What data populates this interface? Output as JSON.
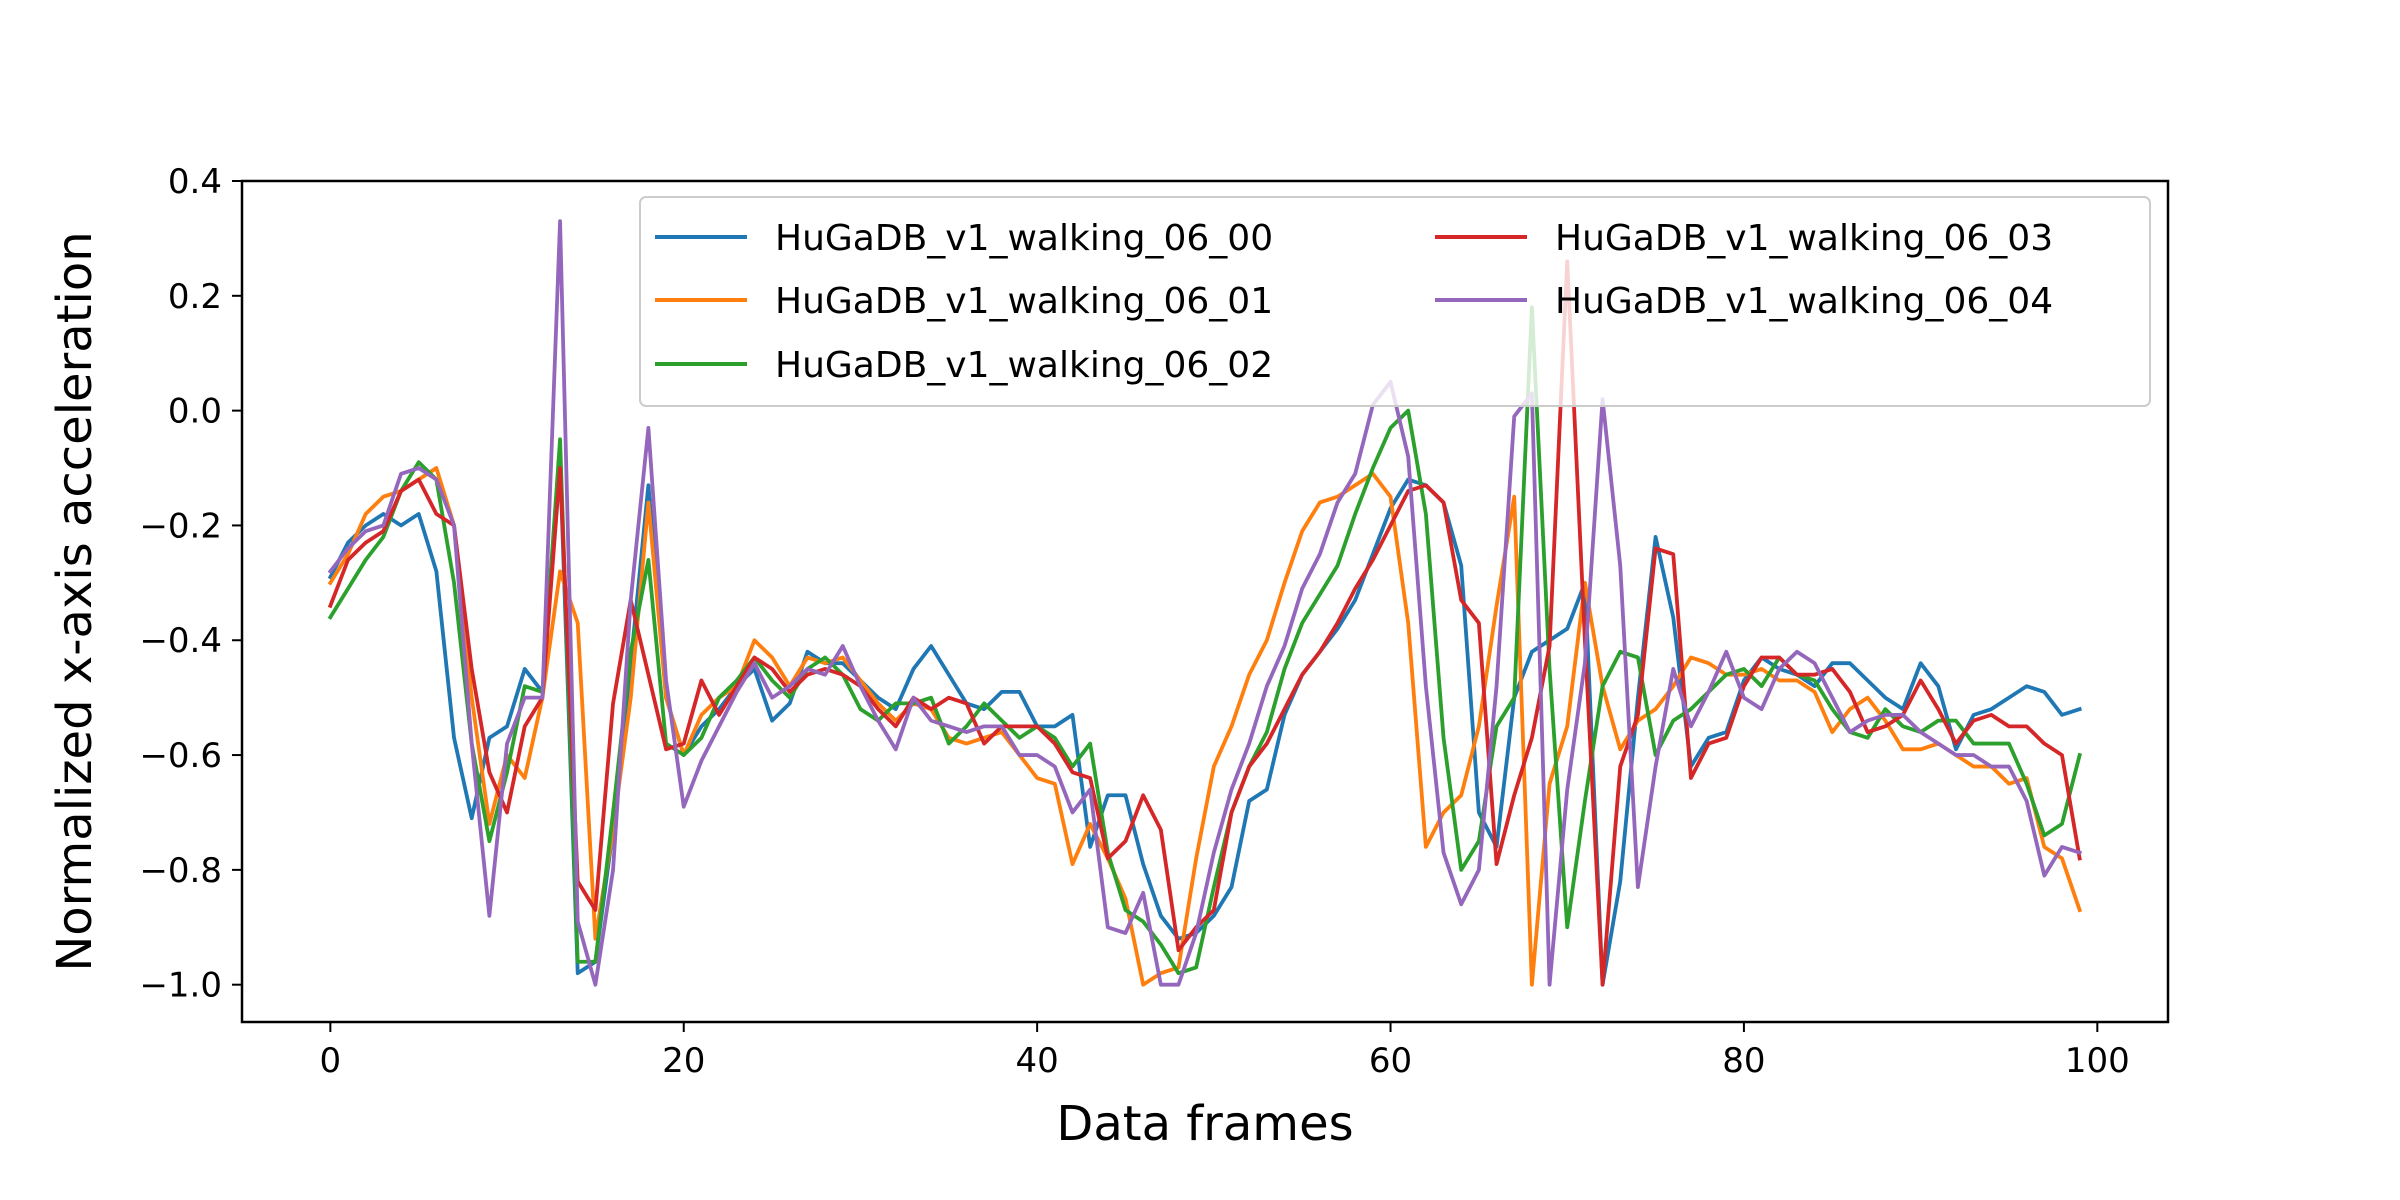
{
  "chart_data": {
    "type": "line",
    "title": "",
    "xlabel": "Data frames",
    "ylabel": "Normalized x-axis acceleration",
    "xlim": [
      -5,
      104
    ],
    "ylim": [
      -1.065,
      0.4
    ],
    "xticks": [
      0,
      20,
      40,
      60,
      80,
      100
    ],
    "yticks": [
      0.4,
      0.2,
      0.0,
      -0.2,
      -0.4,
      -0.6,
      -0.8,
      -1.0
    ],
    "ytick_labels": [
      "0.4",
      "0.2",
      "0.0",
      "−0.2",
      "−0.4",
      "−0.6",
      "−0.8",
      "−1.0"
    ],
    "xtick_labels": [
      "0",
      "20",
      "40",
      "60",
      "80",
      "100"
    ],
    "grid": false,
    "legend": "upper right, 2 columns",
    "x": [
      0,
      1,
      2,
      3,
      4,
      5,
      6,
      7,
      8,
      9,
      10,
      11,
      12,
      13,
      14,
      15,
      16,
      17,
      18,
      19,
      20,
      21,
      22,
      23,
      24,
      25,
      26,
      27,
      28,
      29,
      30,
      31,
      32,
      33,
      34,
      35,
      36,
      37,
      38,
      39,
      40,
      41,
      42,
      43,
      44,
      45,
      46,
      47,
      48,
      49,
      50,
      51,
      52,
      53,
      54,
      55,
      56,
      57,
      58,
      59,
      60,
      61,
      62,
      63,
      64,
      65,
      66,
      67,
      68,
      69,
      70,
      71,
      72,
      73,
      74,
      75,
      76,
      77,
      78,
      79,
      80,
      81,
      82,
      83,
      84,
      85,
      86,
      87,
      88,
      89,
      90,
      91,
      92,
      93,
      94,
      95,
      96,
      97,
      98,
      99
    ],
    "series": [
      {
        "name": "HuGaDB_v1_walking_06_00",
        "color": "#1f77b4",
        "values": [
          -0.29,
          -0.23,
          -0.2,
          -0.18,
          -0.2,
          -0.18,
          -0.28,
          -0.57,
          -0.71,
          -0.57,
          -0.55,
          -0.45,
          -0.49,
          -0.09,
          -0.98,
          -0.96,
          -0.73,
          -0.44,
          -0.13,
          -0.5,
          -0.6,
          -0.55,
          -0.52,
          -0.48,
          -0.45,
          -0.54,
          -0.51,
          -0.42,
          -0.44,
          -0.44,
          -0.47,
          -0.5,
          -0.52,
          -0.45,
          -0.41,
          -0.46,
          -0.51,
          -0.52,
          -0.49,
          -0.49,
          -0.55,
          -0.55,
          -0.53,
          -0.76,
          -0.67,
          -0.67,
          -0.79,
          -0.88,
          -0.92,
          -0.91,
          -0.88,
          -0.83,
          -0.68,
          -0.66,
          -0.53,
          -0.46,
          -0.42,
          -0.38,
          -0.33,
          -0.25,
          -0.17,
          -0.12,
          -0.13,
          -0.16,
          -0.27,
          -0.7,
          -0.76,
          -0.5,
          -0.42,
          -0.4,
          -0.38,
          -0.3,
          -1.0,
          -0.82,
          -0.5,
          -0.22,
          -0.36,
          -0.62,
          -0.57,
          -0.56,
          -0.47,
          -0.43,
          -0.45,
          -0.46,
          -0.48,
          -0.44,
          -0.44,
          -0.47,
          -0.5,
          -0.52,
          -0.44,
          -0.48,
          -0.59,
          -0.53,
          -0.52,
          -0.5,
          -0.48,
          -0.49,
          -0.53,
          -0.52
        ]
      },
      {
        "name": "HuGaDB_v1_walking_06_01",
        "color": "#ff7f0e",
        "values": [
          -0.3,
          -0.25,
          -0.18,
          -0.15,
          -0.14,
          -0.12,
          -0.1,
          -0.2,
          -0.5,
          -0.72,
          -0.6,
          -0.64,
          -0.5,
          -0.28,
          -0.37,
          -0.92,
          -0.73,
          -0.5,
          -0.16,
          -0.5,
          -0.6,
          -0.53,
          -0.5,
          -0.48,
          -0.4,
          -0.43,
          -0.48,
          -0.43,
          -0.44,
          -0.43,
          -0.47,
          -0.51,
          -0.54,
          -0.51,
          -0.52,
          -0.57,
          -0.58,
          -0.57,
          -0.56,
          -0.6,
          -0.64,
          -0.65,
          -0.79,
          -0.72,
          -0.78,
          -0.85,
          -1.0,
          -0.98,
          -0.97,
          -0.78,
          -0.62,
          -0.55,
          -0.46,
          -0.4,
          -0.3,
          -0.21,
          -0.16,
          -0.15,
          -0.13,
          -0.11,
          -0.15,
          -0.37,
          -0.76,
          -0.7,
          -0.67,
          -0.55,
          -0.34,
          -0.15,
          -1.0,
          -0.65,
          -0.55,
          -0.3,
          -0.48,
          -0.59,
          -0.54,
          -0.52,
          -0.48,
          -0.43,
          -0.44,
          -0.46,
          -0.46,
          -0.45,
          -0.47,
          -0.47,
          -0.49,
          -0.56,
          -0.52,
          -0.5,
          -0.54,
          -0.59,
          -0.59,
          -0.58,
          -0.6,
          -0.62,
          -0.62,
          -0.65,
          -0.64,
          -0.76,
          -0.78,
          -0.87
        ]
      },
      {
        "name": "HuGaDB_v1_walking_06_02",
        "color": "#2ca02c",
        "values": [
          -0.36,
          -0.31,
          -0.26,
          -0.22,
          -0.14,
          -0.09,
          -0.12,
          -0.3,
          -0.58,
          -0.75,
          -0.63,
          -0.48,
          -0.49,
          -0.05,
          -0.96,
          -0.96,
          -0.7,
          -0.42,
          -0.26,
          -0.58,
          -0.6,
          -0.57,
          -0.5,
          -0.47,
          -0.43,
          -0.47,
          -0.5,
          -0.45,
          -0.43,
          -0.46,
          -0.52,
          -0.54,
          -0.51,
          -0.51,
          -0.5,
          -0.58,
          -0.55,
          -0.51,
          -0.54,
          -0.57,
          -0.55,
          -0.57,
          -0.62,
          -0.58,
          -0.77,
          -0.87,
          -0.89,
          -0.93,
          -0.98,
          -0.97,
          -0.83,
          -0.7,
          -0.62,
          -0.56,
          -0.45,
          -0.37,
          -0.32,
          -0.27,
          -0.18,
          -0.1,
          -0.03,
          0.0,
          -0.18,
          -0.57,
          -0.8,
          -0.75,
          -0.55,
          -0.5,
          0.18,
          -0.45,
          -0.9,
          -0.68,
          -0.48,
          -0.42,
          -0.43,
          -0.6,
          -0.54,
          -0.52,
          -0.49,
          -0.46,
          -0.45,
          -0.48,
          -0.43,
          -0.46,
          -0.47,
          -0.52,
          -0.56,
          -0.57,
          -0.52,
          -0.55,
          -0.56,
          -0.54,
          -0.54,
          -0.58,
          -0.58,
          -0.58,
          -0.65,
          -0.74,
          -0.72,
          -0.6
        ]
      },
      {
        "name": "HuGaDB_v1_walking_06_03",
        "color": "#d62728",
        "values": [
          -0.34,
          -0.26,
          -0.23,
          -0.21,
          -0.14,
          -0.12,
          -0.18,
          -0.2,
          -0.45,
          -0.63,
          -0.7,
          -0.55,
          -0.5,
          -0.1,
          -0.82,
          -0.87,
          -0.51,
          -0.33,
          -0.46,
          -0.59,
          -0.58,
          -0.47,
          -0.53,
          -0.48,
          -0.43,
          -0.45,
          -0.49,
          -0.46,
          -0.45,
          -0.46,
          -0.48,
          -0.52,
          -0.55,
          -0.5,
          -0.52,
          -0.5,
          -0.51,
          -0.58,
          -0.55,
          -0.55,
          -0.55,
          -0.58,
          -0.63,
          -0.64,
          -0.78,
          -0.75,
          -0.67,
          -0.73,
          -0.94,
          -0.9,
          -0.87,
          -0.7,
          -0.62,
          -0.58,
          -0.52,
          -0.46,
          -0.42,
          -0.37,
          -0.31,
          -0.26,
          -0.2,
          -0.14,
          -0.13,
          -0.16,
          -0.33,
          -0.37,
          -0.79,
          -0.67,
          -0.57,
          -0.41,
          0.26,
          -0.4,
          -1.0,
          -0.62,
          -0.53,
          -0.24,
          -0.25,
          -0.64,
          -0.58,
          -0.57,
          -0.48,
          -0.43,
          -0.43,
          -0.46,
          -0.46,
          -0.45,
          -0.49,
          -0.56,
          -0.55,
          -0.53,
          -0.47,
          -0.52,
          -0.58,
          -0.54,
          -0.53,
          -0.55,
          -0.55,
          -0.58,
          -0.6,
          -0.78
        ]
      },
      {
        "name": "HuGaDB_v1_walking_06_04",
        "color": "#9467bd",
        "values": [
          -0.28,
          -0.24,
          -0.21,
          -0.2,
          -0.11,
          -0.1,
          -0.12,
          -0.2,
          -0.58,
          -0.88,
          -0.58,
          -0.5,
          -0.5,
          0.33,
          -0.89,
          -1.0,
          -0.8,
          -0.33,
          -0.03,
          -0.47,
          -0.69,
          -0.61,
          -0.55,
          -0.49,
          -0.44,
          -0.5,
          -0.48,
          -0.45,
          -0.46,
          -0.41,
          -0.48,
          -0.54,
          -0.59,
          -0.5,
          -0.54,
          -0.55,
          -0.56,
          -0.55,
          -0.55,
          -0.6,
          -0.6,
          -0.62,
          -0.7,
          -0.66,
          -0.9,
          -0.91,
          -0.84,
          -1.0,
          -1.0,
          -0.91,
          -0.77,
          -0.66,
          -0.58,
          -0.48,
          -0.41,
          -0.31,
          -0.25,
          -0.16,
          -0.11,
          0.01,
          0.05,
          -0.08,
          -0.48,
          -0.77,
          -0.86,
          -0.8,
          -0.48,
          -0.01,
          0.03,
          -1.0,
          -0.66,
          -0.44,
          0.02,
          -0.27,
          -0.83,
          -0.62,
          -0.45,
          -0.55,
          -0.49,
          -0.42,
          -0.5,
          -0.52,
          -0.45,
          -0.42,
          -0.44,
          -0.5,
          -0.56,
          -0.54,
          -0.53,
          -0.53,
          -0.56,
          -0.58,
          -0.6,
          -0.6,
          -0.62,
          -0.62,
          -0.68,
          -0.81,
          -0.76,
          -0.77
        ]
      }
    ]
  }
}
